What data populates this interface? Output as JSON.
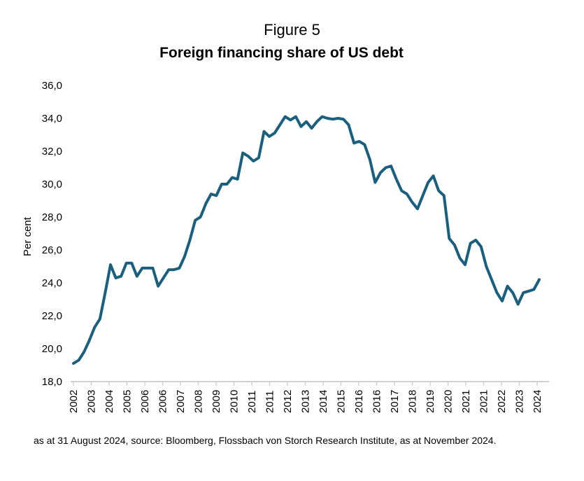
{
  "figure_label": "Figure 5",
  "footnote": "as at 31 August 2024, source: Bloomberg, Flossbach von Storch Research Institute, as at November 2024.",
  "chart_data": {
    "type": "line",
    "title": "Foreign financing share of US debt",
    "ylabel": "Per cent",
    "xlabel": "",
    "ylim": [
      18,
      36
    ],
    "yticks": [
      "18,0",
      "20,0",
      "22,0",
      "24,0",
      "26,0",
      "28,0",
      "30,0",
      "32,0",
      "34,0",
      "36,0"
    ],
    "xticks": [
      "2002",
      "2003",
      "2004",
      "2005",
      "2006",
      "2006",
      "2007",
      "2008",
      "2009",
      "2010",
      "2011",
      "2011",
      "2012",
      "2013",
      "2014",
      "2015",
      "2016",
      "2016",
      "2017",
      "2018",
      "2019",
      "2020",
      "2021",
      "2021",
      "2022",
      "2023",
      "2024"
    ],
    "grid": false,
    "line_color": "#1a5f7e",
    "x_start": "2002Q1",
    "frequency": "quarterly",
    "values": [
      19.1,
      19.3,
      19.8,
      20.5,
      21.3,
      21.8,
      23.4,
      25.1,
      24.3,
      24.4,
      25.2,
      25.2,
      24.4,
      24.9,
      24.9,
      24.9,
      23.8,
      24.3,
      24.8,
      24.8,
      24.9,
      25.6,
      26.6,
      27.8,
      28.0,
      28.8,
      29.4,
      29.3,
      30.0,
      30.0,
      30.4,
      30.3,
      31.9,
      31.7,
      31.4,
      31.6,
      33.2,
      32.9,
      33.1,
      33.6,
      34.1,
      33.9,
      34.1,
      33.5,
      33.8,
      33.4,
      33.8,
      34.1,
      34.0,
      33.95,
      34.0,
      33.95,
      33.6,
      32.5,
      32.6,
      32.4,
      31.5,
      30.1,
      30.7,
      31.0,
      31.1,
      30.3,
      29.6,
      29.4,
      28.9,
      28.5,
      29.3,
      30.1,
      30.5,
      29.6,
      29.3,
      26.7,
      26.3,
      25.5,
      25.1,
      26.4,
      26.6,
      26.2,
      25.0,
      24.2,
      23.4,
      22.9,
      23.8,
      23.4,
      22.7,
      23.4,
      23.5,
      23.6,
      24.2
    ]
  }
}
